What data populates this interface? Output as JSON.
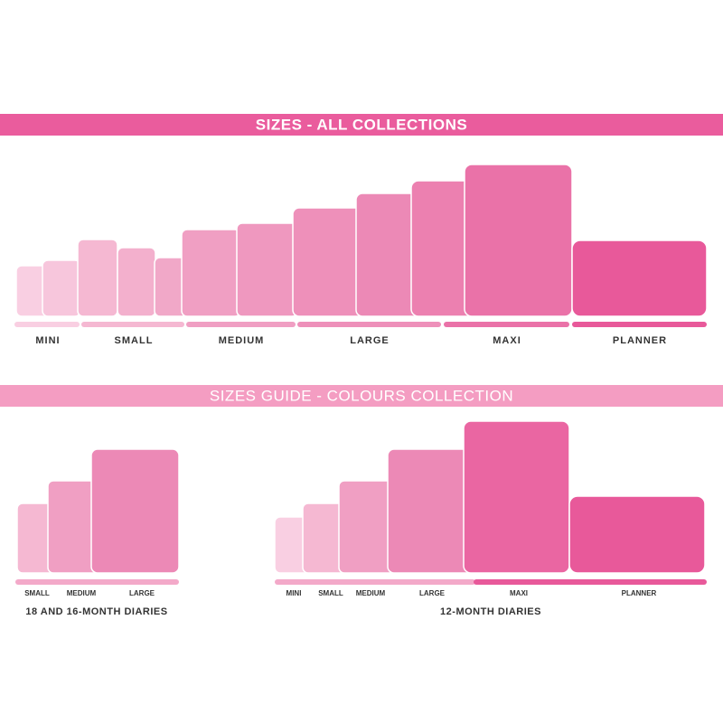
{
  "all_collections": {
    "title": "SIZES - ALL COLLECTIONS",
    "labels": [
      "MINI",
      "SMALL",
      "MEDIUM",
      "LARGE",
      "MAXI",
      "PLANNER"
    ]
  },
  "colours_collection": {
    "title": "SIZES GUIDE - COLOURS COLLECTION",
    "groups": [
      {
        "title": "18 AND 16-MONTH DIARIES",
        "labels": [
          "SMALL",
          "MEDIUM",
          "LARGE"
        ]
      },
      {
        "title": "12-MONTH DIARIES",
        "labels": [
          "MINI",
          "SMALL",
          "MEDIUM",
          "LARGE",
          "MAXI",
          "PLANNER"
        ]
      }
    ]
  }
}
